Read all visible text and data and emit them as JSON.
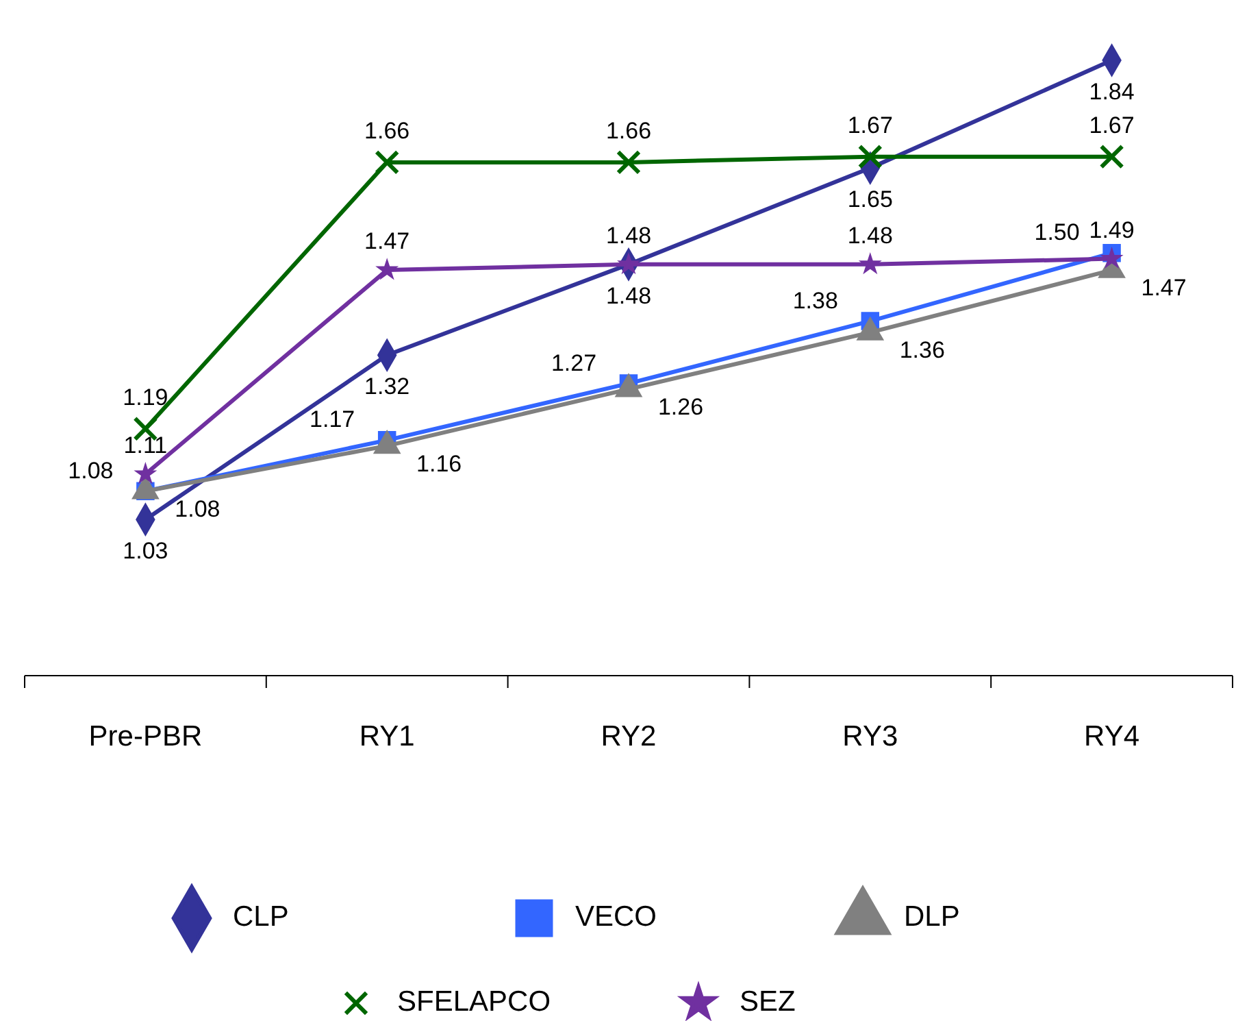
{
  "chart_data": {
    "type": "line",
    "categories": [
      "Pre-PBR",
      "RY1",
      "RY2",
      "RY3",
      "RY4"
    ],
    "data_labels": true,
    "legend": "bottom",
    "series": [
      {
        "name": "CLP",
        "color": "#333399",
        "marker": "diamond",
        "values": [
          1.03,
          1.32,
          1.48,
          1.65,
          1.84
        ]
      },
      {
        "name": "VECO",
        "color": "#3366ff",
        "marker": "square",
        "values": [
          1.08,
          1.17,
          1.27,
          1.38,
          1.5
        ],
        "value_labels": [
          "1.08",
          "1.17",
          "1.27",
          "1.38",
          "1.50"
        ]
      },
      {
        "name": "DLP",
        "color": "#808080",
        "marker": "triangle",
        "values": [
          1.08,
          1.16,
          1.26,
          1.36,
          1.47
        ],
        "value_labels": [
          "1.08",
          "1.16",
          "1.26",
          "1.36",
          "1.47"
        ]
      },
      {
        "name": "SFELAPCO",
        "color": "#006600",
        "marker": "cross",
        "values": [
          1.19,
          1.66,
          1.66,
          1.67,
          1.67
        ]
      },
      {
        "name": "SEZ",
        "color": "#7030a0",
        "marker": "star",
        "values": [
          1.11,
          1.47,
          1.48,
          1.48,
          1.49
        ]
      }
    ]
  }
}
